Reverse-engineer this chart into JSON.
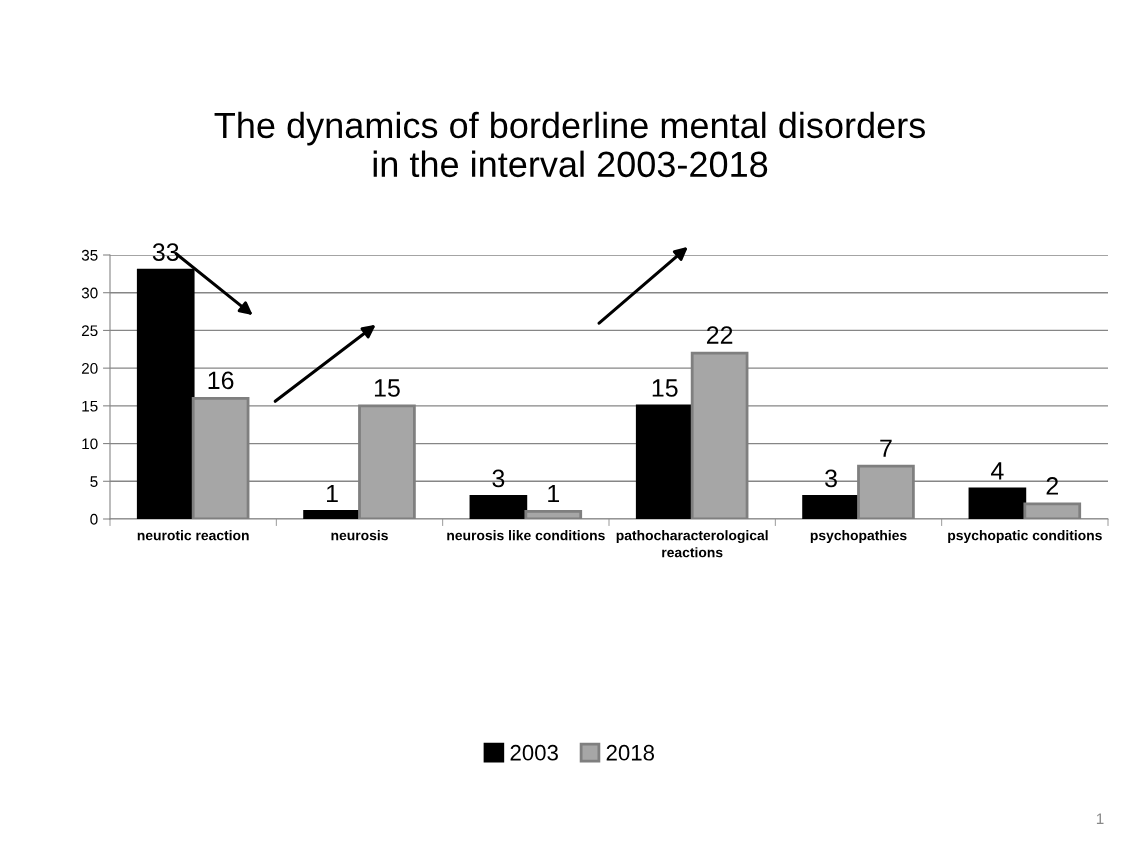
{
  "chart_data": {
    "type": "bar",
    "title": "The dynamics of borderline mental disorders\nin the interval 2003-2018",
    "categories": [
      "neurotic reaction",
      "neurosis",
      "neurosis like conditions",
      "pathocharacterological\nreactions",
      "psychopathies",
      "psychopatic conditions"
    ],
    "series": [
      {
        "name": "2003",
        "color": "#000000",
        "values": [
          33,
          1,
          3,
          15,
          3,
          4
        ]
      },
      {
        "name": "2018",
        "color": "#a6a6a6",
        "values": [
          16,
          15,
          1,
          22,
          7,
          2
        ]
      }
    ],
    "ylim": [
      0,
      35
    ],
    "yticks": [
      0,
      5,
      10,
      15,
      20,
      25,
      30,
      35
    ],
    "grid": "y",
    "legend": "bottom",
    "data_labels": true,
    "annotations": [
      "1"
    ]
  }
}
